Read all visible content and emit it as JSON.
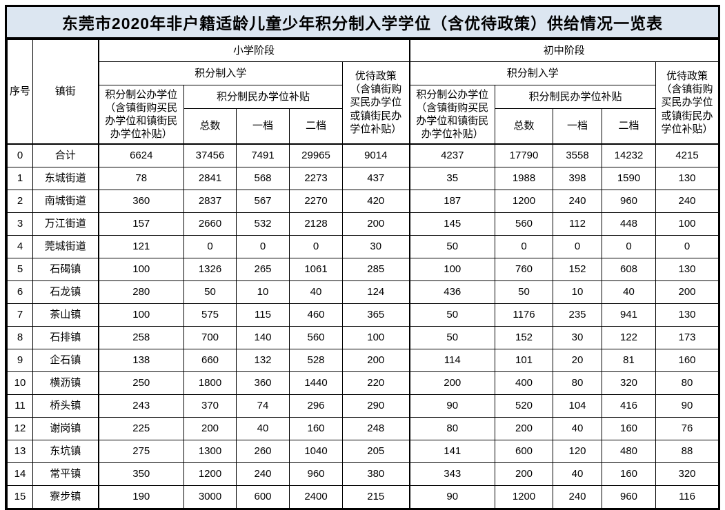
{
  "title": "东莞市2020年非户籍适龄儿童少年积分制入学学位（含优待政策）供给情况一览表",
  "colors": {
    "title_bg": "#dce6f1",
    "border": "#000000",
    "cell_bg": "#ffffff",
    "text": "#000000"
  },
  "table": {
    "headers": {
      "index": "序号",
      "town": "镇街",
      "primary_stage": "小学阶段",
      "junior_stage": "初中阶段",
      "points_admission": "积分制入学",
      "public_seats": "积分制公办学位（含镇街购买民办学位和镇街民办学位补贴）",
      "private_subsidy": "积分制民办学位补贴",
      "total": "总数",
      "tier1": "一档",
      "tier2": "二档",
      "preferential": "优待政策（含镇街购买民办学位或镇街民办学位补贴）"
    },
    "rows": [
      {
        "index": "0",
        "town": "合计",
        "primary": [
          "6624",
          "37456",
          "7491",
          "29965",
          "9014"
        ],
        "junior": [
          "4237",
          "17790",
          "3558",
          "14232",
          "4215"
        ]
      },
      {
        "index": "1",
        "town": "东城街道",
        "primary": [
          "78",
          "2841",
          "568",
          "2273",
          "437"
        ],
        "junior": [
          "35",
          "1988",
          "398",
          "1590",
          "130"
        ]
      },
      {
        "index": "2",
        "town": "南城街道",
        "primary": [
          "360",
          "2837",
          "567",
          "2270",
          "420"
        ],
        "junior": [
          "187",
          "1200",
          "240",
          "960",
          "240"
        ]
      },
      {
        "index": "3",
        "town": "万江街道",
        "primary": [
          "157",
          "2660",
          "532",
          "2128",
          "200"
        ],
        "junior": [
          "145",
          "560",
          "112",
          "448",
          "100"
        ]
      },
      {
        "index": "4",
        "town": "莞城街道",
        "primary": [
          "121",
          "0",
          "0",
          "0",
          "30"
        ],
        "junior": [
          "50",
          "0",
          "0",
          "0",
          "0"
        ]
      },
      {
        "index": "5",
        "town": "石碣镇",
        "primary": [
          "100",
          "1326",
          "265",
          "1061",
          "285"
        ],
        "junior": [
          "100",
          "760",
          "152",
          "608",
          "130"
        ]
      },
      {
        "index": "6",
        "town": "石龙镇",
        "primary": [
          "280",
          "50",
          "10",
          "40",
          "124"
        ],
        "junior": [
          "436",
          "50",
          "10",
          "40",
          "200"
        ]
      },
      {
        "index": "7",
        "town": "茶山镇",
        "primary": [
          "100",
          "575",
          "115",
          "460",
          "365"
        ],
        "junior": [
          "50",
          "1176",
          "235",
          "941",
          "130"
        ]
      },
      {
        "index": "8",
        "town": "石排镇",
        "primary": [
          "258",
          "700",
          "140",
          "560",
          "100"
        ],
        "junior": [
          "50",
          "152",
          "30",
          "122",
          "173"
        ]
      },
      {
        "index": "9",
        "town": "企石镇",
        "primary": [
          "138",
          "660",
          "132",
          "528",
          "200"
        ],
        "junior": [
          "114",
          "101",
          "20",
          "81",
          "160"
        ]
      },
      {
        "index": "10",
        "town": "横沥镇",
        "primary": [
          "250",
          "1800",
          "360",
          "1440",
          "220"
        ],
        "junior": [
          "200",
          "400",
          "80",
          "320",
          "80"
        ]
      },
      {
        "index": "11",
        "town": "桥头镇",
        "primary": [
          "243",
          "370",
          "74",
          "296",
          "290"
        ],
        "junior": [
          "90",
          "520",
          "104",
          "416",
          "90"
        ]
      },
      {
        "index": "12",
        "town": "谢岗镇",
        "primary": [
          "225",
          "200",
          "40",
          "160",
          "248"
        ],
        "junior": [
          "80",
          "200",
          "40",
          "160",
          "76"
        ]
      },
      {
        "index": "13",
        "town": "东坑镇",
        "primary": [
          "275",
          "1300",
          "260",
          "1040",
          "205"
        ],
        "junior": [
          "141",
          "600",
          "120",
          "480",
          "88"
        ]
      },
      {
        "index": "14",
        "town": "常平镇",
        "primary": [
          "350",
          "1200",
          "240",
          "960",
          "380"
        ],
        "junior": [
          "343",
          "200",
          "40",
          "160",
          "320"
        ]
      },
      {
        "index": "15",
        "town": "寮步镇",
        "primary": [
          "190",
          "3000",
          "600",
          "2400",
          "215"
        ],
        "junior": [
          "90",
          "1200",
          "240",
          "960",
          "116"
        ]
      }
    ]
  }
}
